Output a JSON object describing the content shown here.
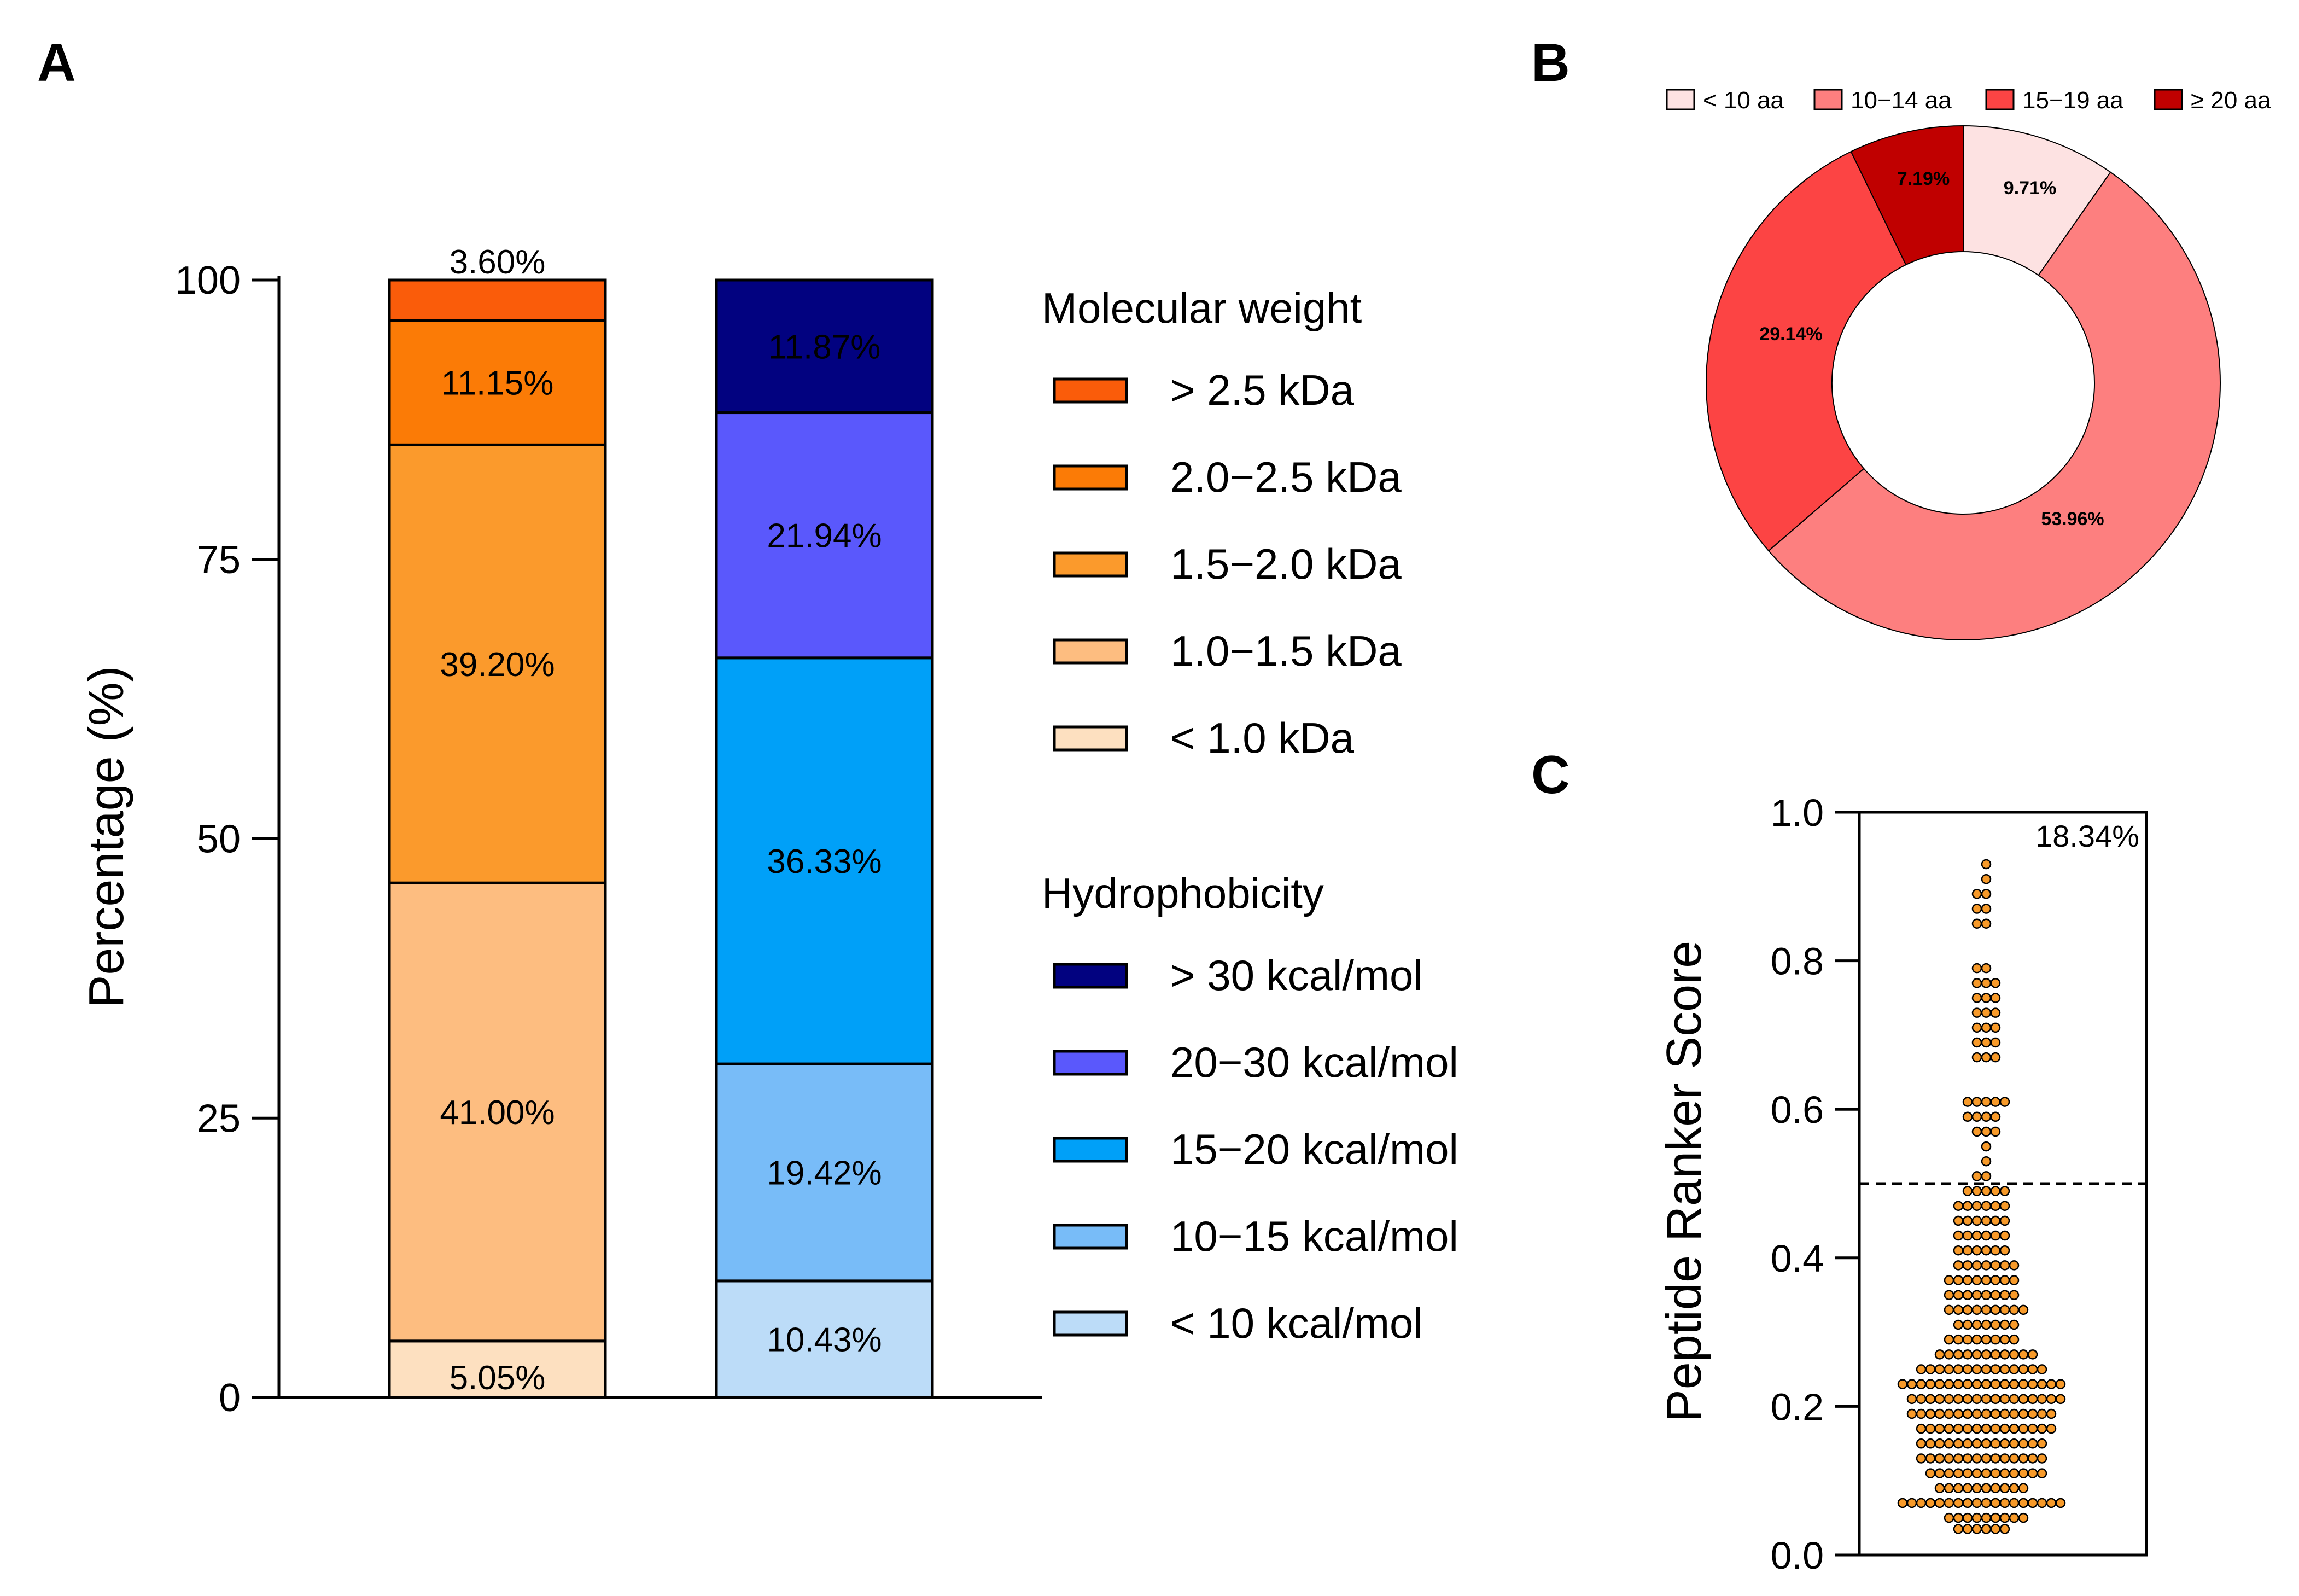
{
  "panels": {
    "a": {
      "letter": "A"
    },
    "b": {
      "letter": "B"
    },
    "c": {
      "letter": "C"
    }
  },
  "chart_data": [
    {
      "type": "bar",
      "subtype": "stacked-100",
      "title": "",
      "xlabel": "",
      "ylabel": "Percentage (%)",
      "ylim": [
        0,
        100
      ],
      "yticks": [
        "0",
        "25",
        "50",
        "75",
        "100"
      ],
      "categories": [
        "Molecular weight",
        "Hydrophobicity"
      ],
      "stacks": [
        {
          "name": "Molecular weight",
          "segments": [
            {
              "label": "< 1.0    kDa",
              "value": 5.05,
              "text": "5.05%",
              "color": "#fde0c0"
            },
            {
              "label": "1.0−1.5  kDa",
              "value": 41.0,
              "text": "41.00%",
              "color": "#fdbd80"
            },
            {
              "label": "1.5−2.0  kDa",
              "value": 39.2,
              "text": "39.20%",
              "color": "#fb9a2c"
            },
            {
              "label": "2.0−2.5  kDa",
              "value": 11.15,
              "text": "11.15%",
              "color": "#fb7b06"
            },
            {
              "label": "> 2.5    kDa",
              "value": 3.6,
              "text": "3.60%",
              "color": "#fa5c0a"
            }
          ]
        },
        {
          "name": "Hydrophobicity",
          "segments": [
            {
              "label": "< 10    kcal/mol",
              "value": 10.43,
              "text": "10.43%",
              "color": "#bcdcf8"
            },
            {
              "label": "10−15  kcal/mol",
              "value": 19.42,
              "text": "19.42%",
              "color": "#78bcf8"
            },
            {
              "label": "15−20  kcal/mol",
              "value": 36.33,
              "text": "36.33%",
              "color": "#00a0f8"
            },
            {
              "label": "20−30  kcal/mol",
              "value": 21.94,
              "text": "21.94%",
              "color": "#5a58fc"
            },
            {
              "label": "> 30    kcal/mol",
              "value": 11.87,
              "text": "11.87%",
              "color": "#020280"
            }
          ]
        }
      ],
      "legends": [
        {
          "title": "Molecular weight",
          "items": [
            {
              "label": "> 2.5     kDa",
              "color": "#fa5c0a"
            },
            {
              "label": "2.0−2.5  kDa",
              "color": "#fb7b06"
            },
            {
              "label": "1.5−2.0  kDa",
              "color": "#fb9a2c"
            },
            {
              "label": "1.0−1.5  kDa",
              "color": "#fdbd80"
            },
            {
              "label": "< 1.0     kDa",
              "color": "#fde0c0"
            }
          ]
        },
        {
          "title": "Hydrophobicity",
          "items": [
            {
              "label": "> 30    kcal/mol",
              "color": "#020280"
            },
            {
              "label": "20−30  kcal/mol",
              "color": "#5a58fc"
            },
            {
              "label": "15−20  kcal/mol",
              "color": "#00a0f8"
            },
            {
              "label": "10−15  kcal/mol",
              "color": "#78bcf8"
            },
            {
              "label": "< 10    kcal/mol",
              "color": "#bcdcf8"
            }
          ]
        }
      ]
    },
    {
      "type": "pie",
      "subtype": "donut",
      "title": "",
      "legend": [
        "< 10 aa",
        "10−14 aa",
        "15−19 aa",
        "≥ 20 aa"
      ],
      "slices": [
        {
          "label": "< 10 aa",
          "value": 9.71,
          "text": "9.71%",
          "color": "#fde2e2"
        },
        {
          "label": "10−14 aa",
          "value": 53.96,
          "text": "53.96%",
          "color": "#fd7f7f"
        },
        {
          "label": "15−19 aa",
          "value": 29.14,
          "text": "29.14%",
          "color": "#fc4444"
        },
        {
          "label": "≥ 20 aa",
          "value": 7.19,
          "text": "7.19%",
          "color": "#c00000"
        }
      ]
    },
    {
      "type": "scatter",
      "subtype": "beeswarm",
      "title": "",
      "xlabel": "",
      "ylabel": "Peptide Ranker Score",
      "ylim": [
        0,
        1.0
      ],
      "yticks": [
        "0.0",
        "0.2",
        "0.4",
        "0.6",
        "0.8",
        "1.0"
      ],
      "threshold": 0.5,
      "annotation": "18.34%",
      "marker_color": "#f79a2a",
      "bins": [
        {
          "center": 0.035,
          "count": 6
        },
        {
          "center": 0.05,
          "count": 9
        },
        {
          "center": 0.07,
          "count": 18
        },
        {
          "center": 0.09,
          "count": 10
        },
        {
          "center": 0.11,
          "count": 13
        },
        {
          "center": 0.13,
          "count": 14
        },
        {
          "center": 0.15,
          "count": 14
        },
        {
          "center": 0.17,
          "count": 15
        },
        {
          "center": 0.19,
          "count": 16
        },
        {
          "center": 0.21,
          "count": 17
        },
        {
          "center": 0.23,
          "count": 18
        },
        {
          "center": 0.25,
          "count": 14
        },
        {
          "center": 0.27,
          "count": 11
        },
        {
          "center": 0.29,
          "count": 8
        },
        {
          "center": 0.31,
          "count": 7
        },
        {
          "center": 0.33,
          "count": 9
        },
        {
          "center": 0.35,
          "count": 8
        },
        {
          "center": 0.37,
          "count": 8
        },
        {
          "center": 0.39,
          "count": 7
        },
        {
          "center": 0.41,
          "count": 6
        },
        {
          "center": 0.43,
          "count": 6
        },
        {
          "center": 0.45,
          "count": 6
        },
        {
          "center": 0.47,
          "count": 6
        },
        {
          "center": 0.49,
          "count": 5
        },
        {
          "center": 0.51,
          "count": 2
        },
        {
          "center": 0.53,
          "count": 1
        },
        {
          "center": 0.55,
          "count": 1
        },
        {
          "center": 0.57,
          "count": 3
        },
        {
          "center": 0.59,
          "count": 4
        },
        {
          "center": 0.61,
          "count": 5
        },
        {
          "center": 0.67,
          "count": 3
        },
        {
          "center": 0.69,
          "count": 3
        },
        {
          "center": 0.71,
          "count": 3
        },
        {
          "center": 0.73,
          "count": 3
        },
        {
          "center": 0.75,
          "count": 3
        },
        {
          "center": 0.77,
          "count": 3
        },
        {
          "center": 0.79,
          "count": 2
        },
        {
          "center": 0.85,
          "count": 2
        },
        {
          "center": 0.87,
          "count": 2
        },
        {
          "center": 0.89,
          "count": 2
        },
        {
          "center": 0.91,
          "count": 1
        },
        {
          "center": 0.93,
          "count": 1
        }
      ]
    }
  ]
}
